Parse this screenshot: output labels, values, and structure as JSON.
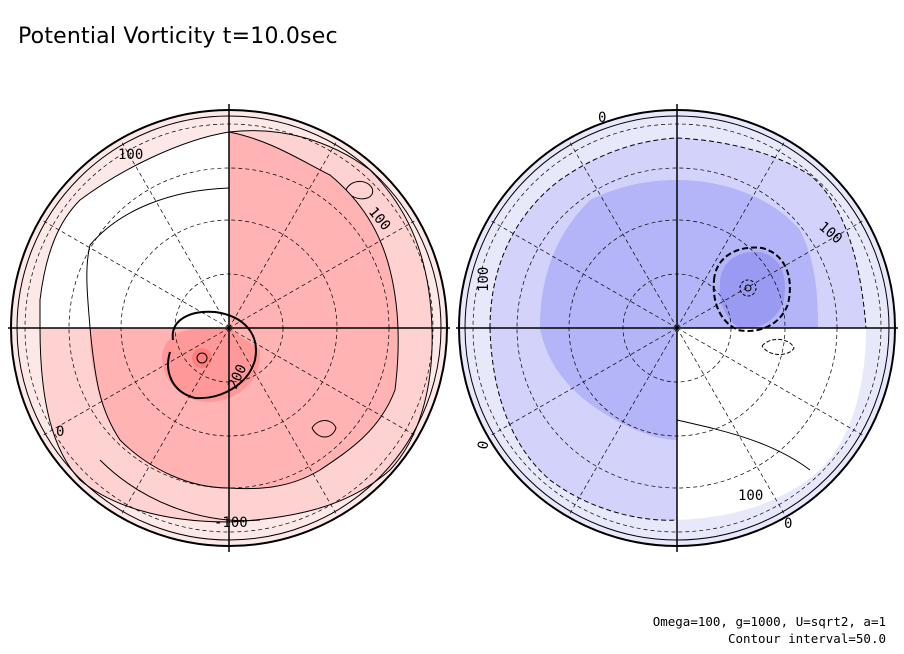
{
  "title": "Potential Vorticity t=10.0sec",
  "footer": {
    "params": "Omega=100, g=1000, U=sqrt2, a=1",
    "interval": "Contour interval=50.0"
  },
  "chart_data": [
    {
      "type": "contour",
      "hemisphere": "left",
      "projection": "polar",
      "contour_interval": 50.0,
      "labeled_levels": [
        "100",
        "100",
        "-100",
        "0",
        "200"
      ],
      "colors": {
        "level_0_50": "#fde8e8",
        "level_50_100": "#ffd2d2",
        "level_100_150": "#ffb3b3",
        "level_150_200": "#ff9898",
        "level_200_plus": "#ff8080"
      }
    },
    {
      "type": "contour",
      "hemisphere": "right",
      "projection": "polar",
      "contour_interval": 50.0,
      "labeled_levels": [
        "0",
        "100",
        "100",
        "0",
        "100",
        "0"
      ],
      "colors": {
        "level_0_-50": "#e8e8fb",
        "level_-50_-100": "#d2d2fb",
        "level_-100_-150": "#b4b4f8",
        "level_-150_-200": "#9a9af2"
      }
    }
  ]
}
